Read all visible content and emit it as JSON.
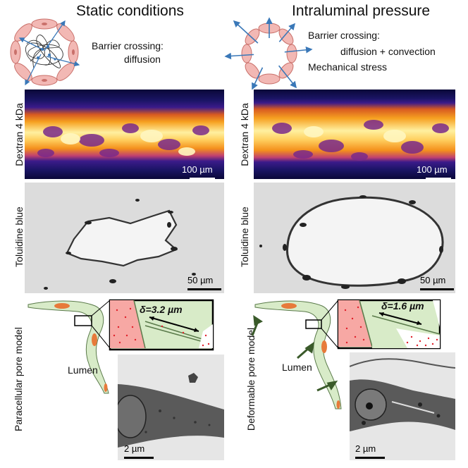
{
  "left": {
    "title": "Static conditions",
    "barrier_label_1": "Barrier crossing:",
    "barrier_label_2": "diffusion",
    "dextran_label": "Dextran 4 kDa",
    "dextran_scale": "100 µm",
    "toluidine_label": "Toluidine blue",
    "toluidine_scale": "50 µm",
    "model_label": "Paracellular pore model",
    "lumen_label": "Lumen",
    "delta_label": "δ=3.2 µm",
    "em_scale": "2 µm"
  },
  "right": {
    "title": "Intraluminal pressure",
    "barrier_label_1": "Barrier crossing:",
    "barrier_label_2": "diffusion + convection",
    "stress_label": "Mechanical stress",
    "dextran_label": "Dextran 4 kDa",
    "dextran_scale": "100 µm",
    "toluidine_label": "Toluidine blue",
    "toluidine_scale": "50 µm",
    "model_label": "Deformable pore model",
    "lumen_label": "Lumen",
    "delta_label": "δ=1.6 µm",
    "em_scale": "2 µm"
  },
  "colors": {
    "cell_pink": "#f2b8b4",
    "cell_outline": "#c9706a",
    "arrow_blue": "#3a78b8",
    "endothelium_green": "#d8ebc8",
    "nucleus_orange": "#e77a3a",
    "tissue_red": "#f7a8a4",
    "dark_green_arrow": "#3a5a2a"
  }
}
